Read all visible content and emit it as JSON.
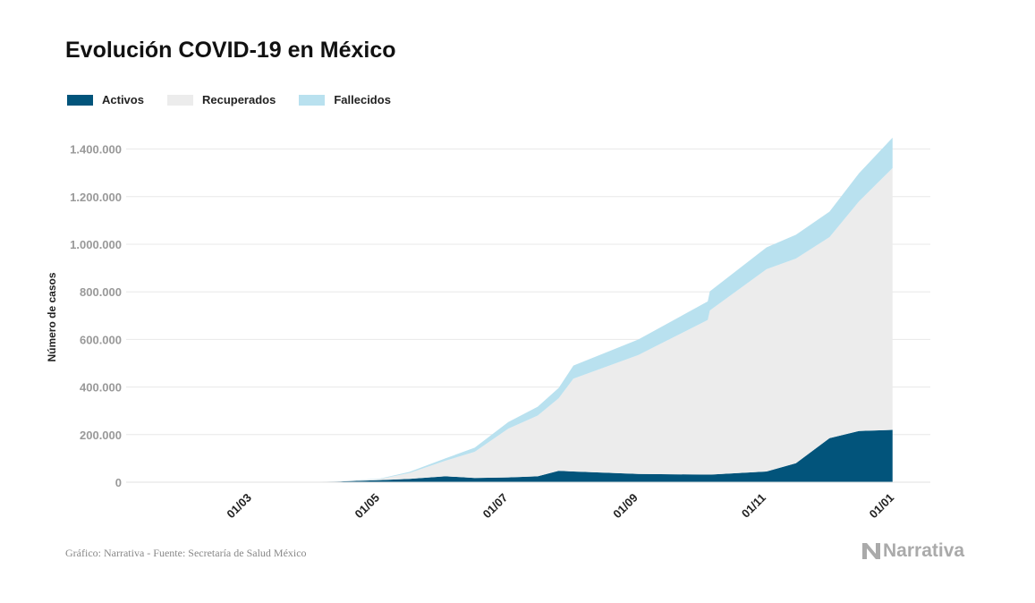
{
  "title": "Evolución COVID-19 en México",
  "source": "Gráfico: Narrativa - Fuente: Secretaría de Salud México",
  "logo_text": "Narrativa",
  "chart_data": {
    "type": "area",
    "stacked": true,
    "title": "Evolución COVID-19 en México",
    "ylabel": "Número de casos",
    "xlabel": "",
    "xlim": [
      "2020-01-01",
      "2021-01-18"
    ],
    "ylim": [
      0,
      1500000
    ],
    "grid": true,
    "legend_placement": "top-left",
    "y_ticks": [
      0,
      200000,
      400000,
      600000,
      800000,
      1000000,
      1200000,
      1400000
    ],
    "y_tick_labels": [
      "0",
      "200.000",
      "400.000",
      "600.000",
      "800.000",
      "1.000.000",
      "1.200.000",
      "1.400.000"
    ],
    "x_ticks": [
      "2020-03-01",
      "2020-05-01",
      "2020-07-01",
      "2020-09-01",
      "2020-11-01",
      "2021-01-01"
    ],
    "x_tick_labels": [
      "01/03",
      "01/05",
      "01/07",
      "01/09",
      "01/11",
      "01/01"
    ],
    "x": [
      "2020-03-15",
      "2020-04-01",
      "2020-04-15",
      "2020-05-01",
      "2020-05-15",
      "2020-06-01",
      "2020-06-15",
      "2020-07-01",
      "2020-07-15",
      "2020-07-25",
      "2020-08-01",
      "2020-09-01",
      "2020-10-04",
      "2020-10-05",
      "2020-11-01",
      "2020-11-15",
      "2020-12-01",
      "2020-12-15",
      "2020-12-31"
    ],
    "series": [
      {
        "name": "Activos",
        "color": "#02547b",
        "values": [
          0,
          1000,
          4000,
          9000,
          14000,
          25000,
          18000,
          20000,
          25000,
          48000,
          45000,
          35000,
          32000,
          32000,
          45000,
          80000,
          185000,
          215000,
          220000
        ]
      },
      {
        "name": "Recuperados",
        "color": "#ececec",
        "values": [
          0,
          200,
          1500,
          4500,
          25000,
          65000,
          110000,
          205000,
          255000,
          305000,
          390000,
          500000,
          650000,
          690000,
          850000,
          860000,
          845000,
          965000,
          1100000
        ]
      },
      {
        "name": "Fallecidos",
        "color": "#b9e1ef",
        "values": [
          0,
          30,
          400,
          1800,
          4500,
          10000,
          17000,
          28000,
          37000,
          43000,
          55000,
          65000,
          78000,
          80000,
          92000,
          100000,
          107000,
          118000,
          128000
        ]
      }
    ]
  }
}
